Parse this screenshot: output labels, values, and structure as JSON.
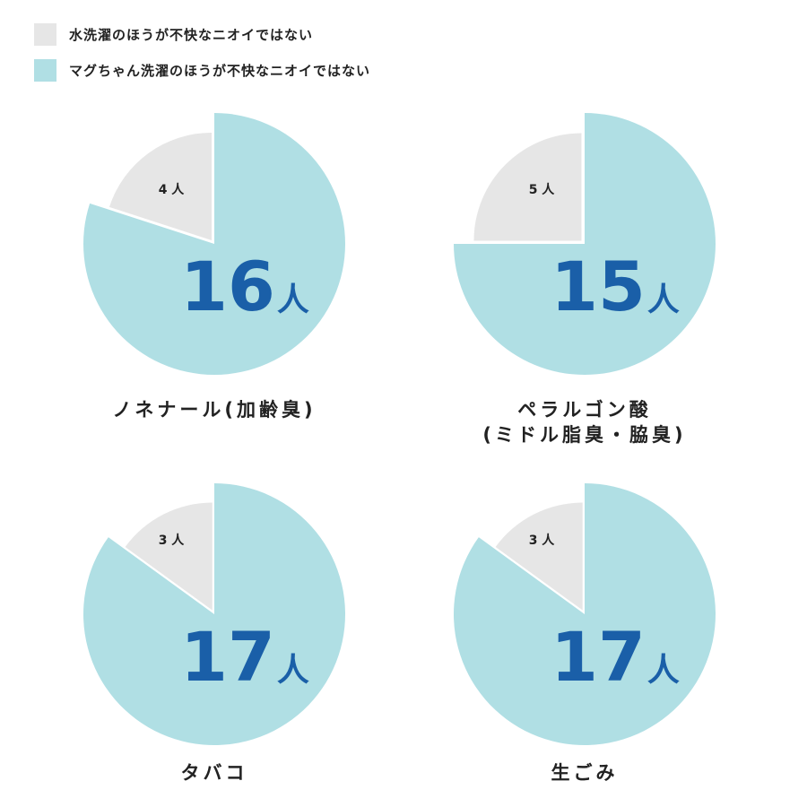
{
  "legend": [
    {
      "label": "水洗濯のほうが不快なニオイではない",
      "color": "#e6e6e6"
    },
    {
      "label": "マグちゃん洗濯のほうが不快なニオイではない",
      "color": "#b0dfe4"
    }
  ],
  "unit": "人",
  "number_color": "#1a5fa8",
  "chart_data": [
    {
      "type": "pie",
      "title": [
        "ノネナール(加齢臭)"
      ],
      "series": [
        {
          "label": "マグちゃん洗濯のほうが不快なニオイではない",
          "value": 16
        },
        {
          "label": "水洗濯のほうが不快なニオイではない",
          "value": 4
        }
      ]
    },
    {
      "type": "pie",
      "title": [
        "ペラルゴン酸",
        "(ミドル脂臭・脇臭)"
      ],
      "series": [
        {
          "label": "マグちゃん洗濯のほうが不快なニオイではない",
          "value": 15
        },
        {
          "label": "水洗濯のほうが不快なニオイではない",
          "value": 5
        }
      ]
    },
    {
      "type": "pie",
      "title": [
        "タバコ"
      ],
      "series": [
        {
          "label": "マグちゃん洗濯のほうが不快なニオイではない",
          "value": 17
        },
        {
          "label": "水洗濯のほうが不快なニオイではない",
          "value": 3
        }
      ]
    },
    {
      "type": "pie",
      "title": [
        "生ごみ"
      ],
      "series": [
        {
          "label": "マグちゃん洗濯のほうが不快なニオイではない",
          "value": 17
        },
        {
          "label": "水洗濯のほうが不快なニオイではない",
          "value": 3
        }
      ]
    }
  ]
}
